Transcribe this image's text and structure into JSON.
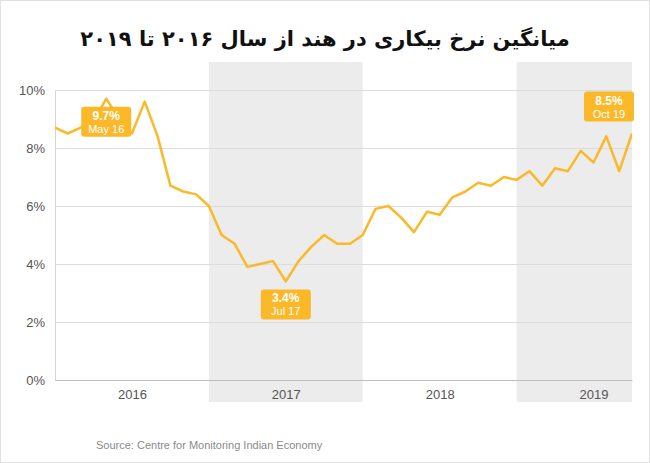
{
  "chart_data": {
    "type": "line",
    "title": "میانگین نرخ بیکاری در هند از سال ۲۰۱۶ تا ۲۰۱۹",
    "source": "Source: Centre for Monitoring Indian Economy",
    "color": "#fbb829",
    "grid": true,
    "x": [
      2016.0,
      2016.083,
      2016.167,
      2016.25,
      2016.333,
      2016.417,
      2016.5,
      2016.583,
      2016.667,
      2016.75,
      2016.833,
      2016.917,
      2017.0,
      2017.083,
      2017.167,
      2017.25,
      2017.333,
      2017.417,
      2017.5,
      2017.583,
      2017.667,
      2017.75,
      2017.833,
      2017.917,
      2018.0,
      2018.083,
      2018.167,
      2018.25,
      2018.333,
      2018.417,
      2018.5,
      2018.583,
      2018.667,
      2018.75,
      2018.833,
      2018.917,
      2019.0,
      2019.083,
      2019.167,
      2019.25,
      2019.333,
      2019.417,
      2019.5,
      2019.583,
      2019.667,
      2019.75
    ],
    "values": [
      8.7,
      8.5,
      8.7,
      8.9,
      9.7,
      9.0,
      8.5,
      9.6,
      8.4,
      6.7,
      6.5,
      6.4,
      6.0,
      5.0,
      4.7,
      3.9,
      4.0,
      4.1,
      3.4,
      4.1,
      4.6,
      5.0,
      4.7,
      4.7,
      5.0,
      5.9,
      6.0,
      5.6,
      5.1,
      5.8,
      5.7,
      6.3,
      6.5,
      6.8,
      6.7,
      7.0,
      6.9,
      7.2,
      6.7,
      7.3,
      7.2,
      7.9,
      7.5,
      8.4,
      7.2,
      8.5
    ],
    "xlim": [
      2016.0,
      2019.75
    ],
    "xticks": [
      {
        "value": 2016.5,
        "label": "2016"
      },
      {
        "value": 2017.5,
        "label": "2017"
      },
      {
        "value": 2018.5,
        "label": "2018"
      },
      {
        "value": 2019.5,
        "label": "2019"
      }
    ],
    "ylim": [
      0,
      10
    ],
    "yticks": [
      {
        "value": 0,
        "label": "0%"
      },
      {
        "value": 2,
        "label": "2%"
      },
      {
        "value": 4,
        "label": "4%"
      },
      {
        "value": 6,
        "label": "6%"
      },
      {
        "value": 8,
        "label": "8%"
      },
      {
        "value": 10,
        "label": "10%"
      }
    ],
    "annotations": [
      {
        "x": 2016.333,
        "y": 9.7,
        "label": "9.7%",
        "date": "May 16"
      },
      {
        "x": 2017.5,
        "y": 3.4,
        "label": "3.4%",
        "date": "Jul 17"
      },
      {
        "x": 2019.75,
        "y": 8.5,
        "label": "8.5%",
        "date": "Oct 19"
      }
    ]
  }
}
